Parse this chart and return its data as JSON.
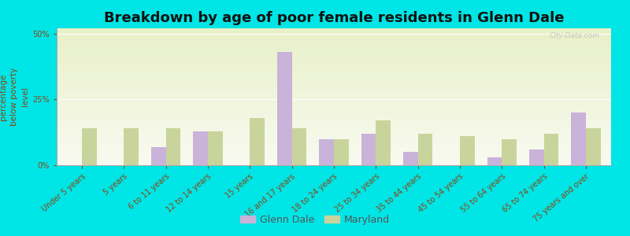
{
  "title": "Breakdown by age of poor female residents in Glenn Dale",
  "ylabel": "percentage\nbelow poverty\nlevel",
  "categories": [
    "Under 5 years",
    "5 years",
    "6 to 11 years",
    "12 to 14 years",
    "15 years",
    "16 and 17 years",
    "18 to 24 years",
    "25 to 34 years",
    "35 to 44 years",
    "45 to 54 years",
    "55 to 64 years",
    "65 to 74 years",
    "75 years and over"
  ],
  "glenn_dale": [
    0,
    0,
    7,
    13,
    0,
    43,
    10,
    12,
    5,
    0,
    3,
    6,
    20
  ],
  "maryland": [
    14,
    14,
    14,
    13,
    18,
    14,
    10,
    17,
    12,
    11,
    10,
    12,
    14
  ],
  "glenn_dale_color": "#c9b3d9",
  "maryland_color": "#c8d49b",
  "background_top": "#e8f0c8",
  "background_bottom": "#f8faf0",
  "outer_bg": "#00e5e5",
  "ylim": [
    0,
    52
  ],
  "yticks": [
    0,
    25,
    50
  ],
  "ytick_labels": [
    "0%",
    "25%",
    "50%"
  ],
  "title_fontsize": 13,
  "axis_label_fontsize": 7.5,
  "tick_fontsize": 7,
  "legend_glenn_dale": "Glenn Dale",
  "legend_maryland": "Maryland",
  "bar_width": 0.35,
  "watermark": "City-Data.com"
}
